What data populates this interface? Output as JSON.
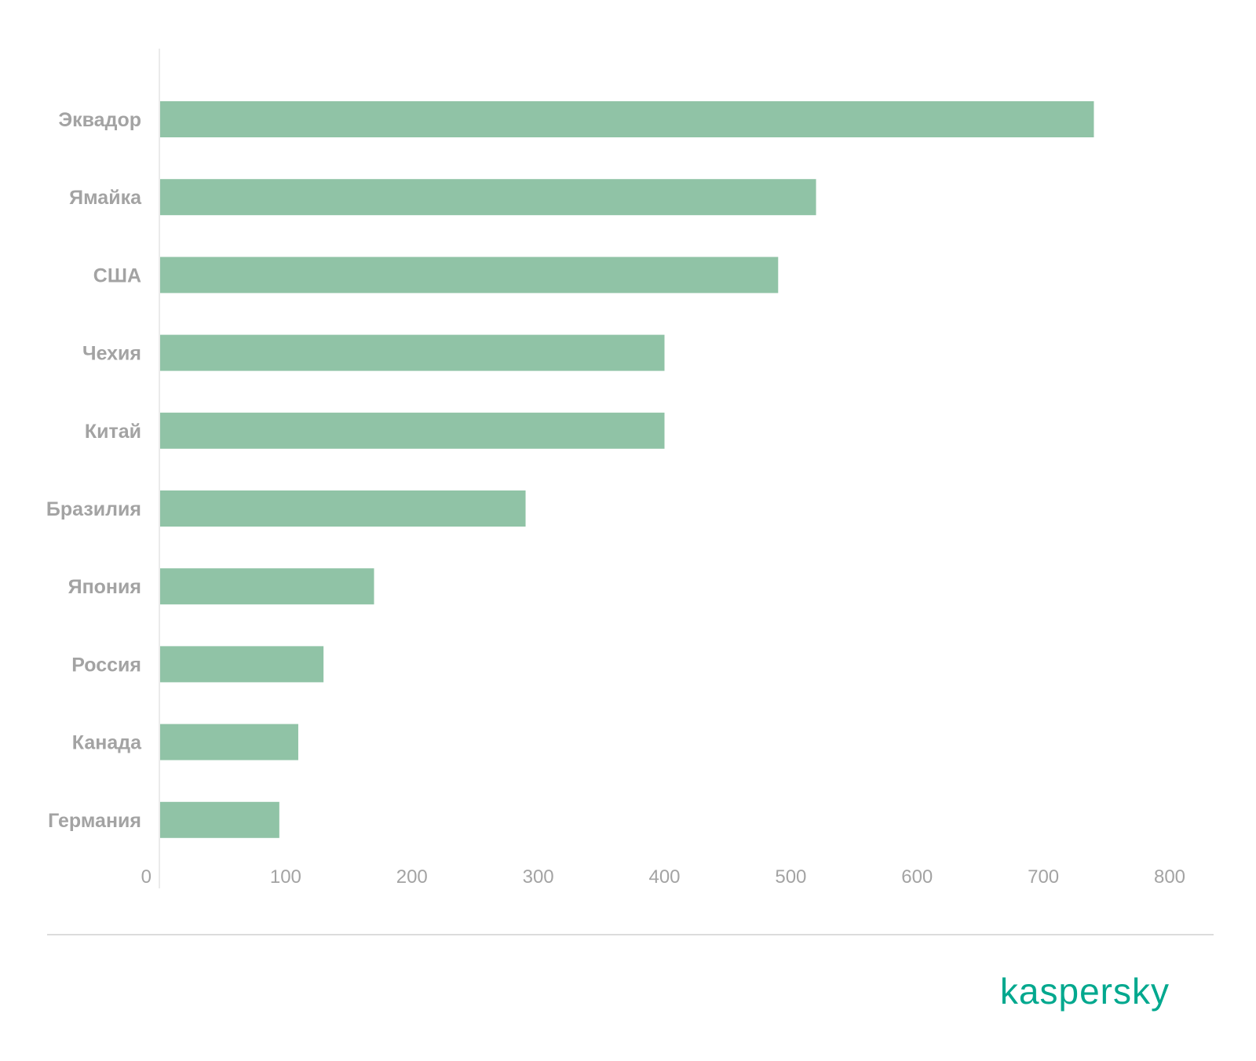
{
  "chart_data": {
    "type": "bar",
    "orientation": "horizontal",
    "categories": [
      "Эквадор",
      "Ямайка",
      "США",
      "Чехия",
      "Китай",
      "Бразилия",
      "Япония",
      "Россия",
      "Канада",
      "Германия"
    ],
    "values": [
      740,
      520,
      490,
      400,
      400,
      290,
      170,
      130,
      110,
      95
    ],
    "xlim": [
      0,
      800
    ],
    "x_ticks": [
      "0",
      "100",
      "200",
      "300",
      "400",
      "500",
      "600",
      "700",
      "800"
    ],
    "title": "",
    "xlabel": "",
    "ylabel": "",
    "grid": false,
    "legend": "none",
    "bar_color": "#90c3a6"
  },
  "brand": {
    "name": "kaspersky",
    "color": "#00a88e"
  }
}
